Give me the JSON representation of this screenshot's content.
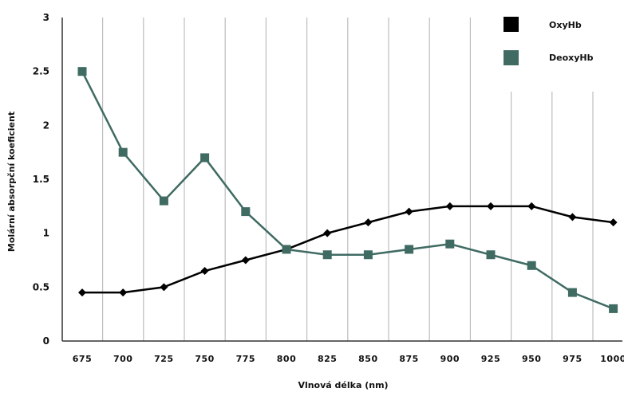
{
  "chart_data": {
    "type": "line",
    "xlabel": "Vlnová délka (nm)",
    "ylabel": "Molární absorpční koeficient",
    "ylim": [
      0,
      3
    ],
    "yticks": [
      "0",
      "0.5",
      "1",
      "1.5",
      "2",
      "2.5",
      "3"
    ],
    "categories": [
      "675",
      "700",
      "725",
      "750",
      "775",
      "800",
      "825",
      "850",
      "875",
      "900",
      "925",
      "950",
      "975",
      "1000"
    ],
    "grid": "vertical",
    "legend_position": "top-right",
    "series": [
      {
        "name": "OxyHb",
        "color": "#000000",
        "marker": "diamond",
        "values": [
          0.45,
          0.45,
          0.5,
          0.65,
          0.75,
          0.85,
          1.0,
          1.1,
          1.2,
          1.25,
          1.25,
          1.25,
          1.15,
          1.1
        ]
      },
      {
        "name": "DeoxyHb",
        "color": "#3f6b63",
        "marker": "square",
        "values": [
          2.5,
          1.75,
          1.3,
          1.7,
          1.2,
          0.85,
          0.8,
          0.8,
          0.85,
          0.9,
          0.8,
          0.7,
          0.45,
          0.3
        ]
      }
    ]
  }
}
